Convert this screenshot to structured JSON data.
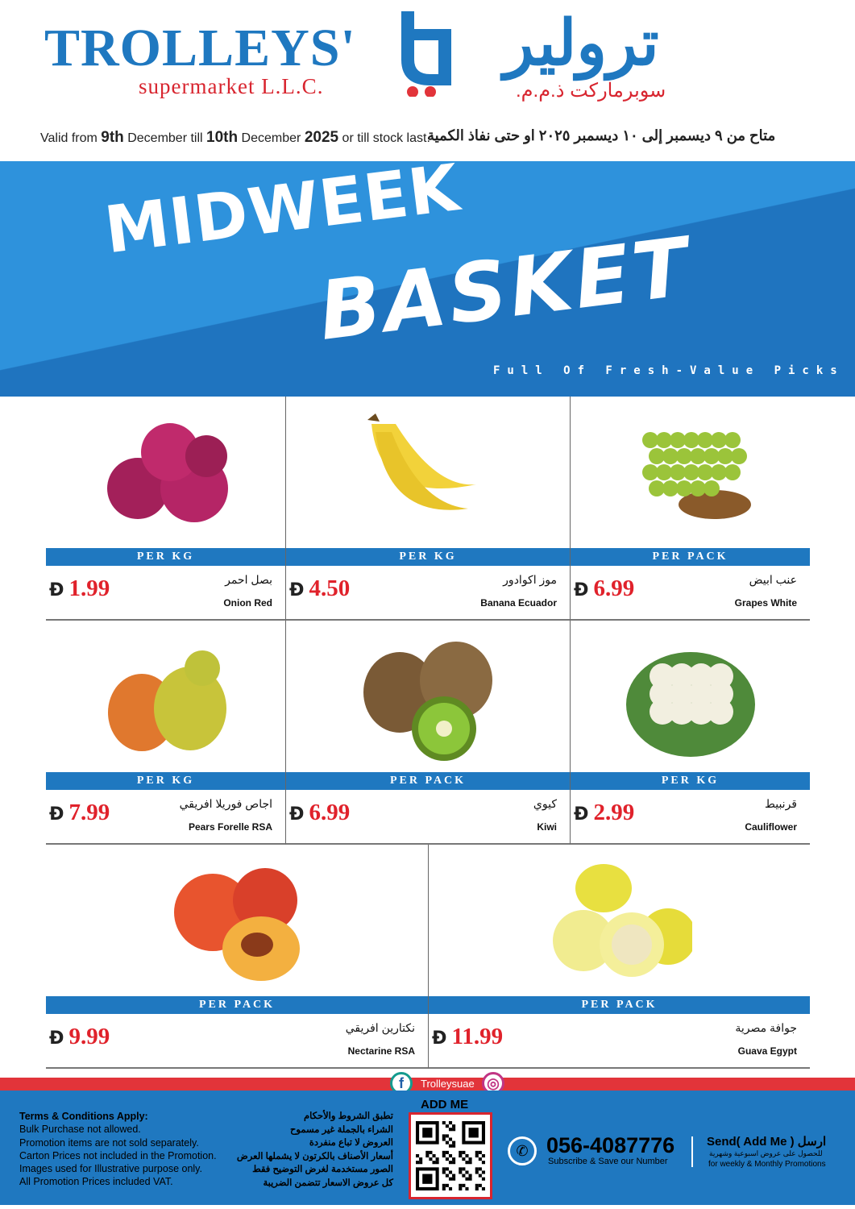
{
  "header": {
    "logo_en": "TROLLEYS'",
    "logo_en_sub": "supermarket L.L.C.",
    "logo_ar": "ترولير",
    "logo_ar_sub": "سوبرماركت ذ.م.م.",
    "validity_en": {
      "p1": "Valid from ",
      "d1": "9th",
      "p2": " December till ",
      "d2": "10th",
      "p3": " December ",
      "year": "2025",
      "p4": " or till stock last."
    },
    "validity_ar": "متاح من ٩ ديسمبر إلى ١٠ ديسمبر ٢٠٢٥ او حتى نفاذ الكمية"
  },
  "banner": {
    "title1": "MIDWEEK",
    "title2": "BASKET",
    "tagline": "Full Of Fresh-Value Picks",
    "colors": {
      "light": "#2e92dc",
      "dark": "#1f74bf"
    }
  },
  "currency_symbol": "Đ",
  "products": [
    {
      "unit": "PER KG",
      "price": "1.99",
      "name_ar": "بصل احمر",
      "name_en": "Onion Red",
      "icon": "onion"
    },
    {
      "unit": "PER KG",
      "price": "4.50",
      "name_ar": "موز اكوادور",
      "name_en": "Banana Ecuador",
      "icon": "banana"
    },
    {
      "unit": "PER PACK",
      "price": "6.99",
      "name_ar": "عنب ابيض",
      "name_en": "Grapes White",
      "icon": "grapes"
    },
    {
      "unit": "PER KG",
      "price": "7.99",
      "name_ar": "اجاص فوريلا افريقي",
      "name_en": "Pears Forelle RSA",
      "icon": "pear"
    },
    {
      "unit": "PER PACK",
      "price": "6.99",
      "name_ar": "كيوي",
      "name_en": "Kiwi",
      "icon": "kiwi"
    },
    {
      "unit": "PER KG",
      "price": "2.99",
      "name_ar": "قرنبيط",
      "name_en": "Cauliflower",
      "icon": "cauliflower"
    },
    {
      "unit": "PER PACK",
      "price": "9.99",
      "name_ar": "نكتارين افريقي",
      "name_en": "Nectarine RSA",
      "icon": "nectarine"
    },
    {
      "unit": "PER PACK",
      "price": "11.99",
      "name_ar": "جوافة مصرية",
      "name_en": "Guava Egypt",
      "icon": "guava"
    }
  ],
  "footer": {
    "social_handle": "Trolleysuae",
    "terms_title": "Terms & Conditions Apply:",
    "terms": [
      "Bulk Purchase not allowed.",
      "Promotion items are not sold separately.",
      "Carton Prices not included in the Promotion.",
      "Images used for Illustrative purpose only.",
      "All Promotion Prices included VAT."
    ],
    "terms_ar": [
      "تطبق الشروط والأحكام",
      "الشراء بالجملة غير مسموح",
      "العروض لا تباع منفردة",
      "أسعار الأصناف بالكرتون لا يشملها العرض",
      "الصور مستخدمة لغرض التوضيح فقط",
      "كل عروض الاسعار تتضمن الضريبة"
    ],
    "add_me": "ADD ME",
    "phone": "056-4087776",
    "phone_sub": "Subscribe & Save our Number",
    "send": "Send( Add Me ) ارسل",
    "send_sub_ar": "للحصول على عروض اسبوعية وشهرية",
    "send_sub_en": "for weekly & Monthly Promotions"
  }
}
